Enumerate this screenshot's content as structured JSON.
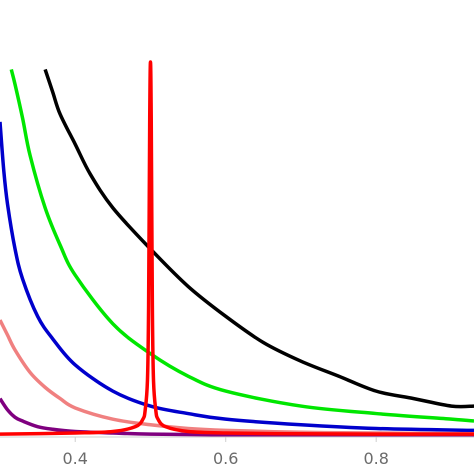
{
  "chart_data": {
    "type": "line",
    "title": "",
    "xlabel": "",
    "ylabel": "",
    "xlim": [
      0.3,
      0.93
    ],
    "ylim": [
      0,
      1
    ],
    "grid": false,
    "legend": "none",
    "x_ticks": [
      {
        "value": 0.4,
        "label": "0.4"
      },
      {
        "value": 0.6,
        "label": "0.6"
      },
      {
        "value": 0.8,
        "label": "0.8"
      }
    ],
    "series": [
      {
        "color": "#000000",
        "x": [
          0.36,
          0.37,
          0.38,
          0.4,
          0.42,
          0.45,
          0.5,
          0.55,
          0.6,
          0.65,
          0.7,
          0.75,
          0.8,
          0.85,
          0.9,
          0.93
        ],
        "y": [
          0.98,
          0.92,
          0.86,
          0.78,
          0.7,
          0.61,
          0.5,
          0.4,
          0.32,
          0.25,
          0.2,
          0.16,
          0.12,
          0.1,
          0.08,
          0.08
        ]
      },
      {
        "color": "#00e600",
        "x": [
          0.315,
          0.32,
          0.33,
          0.34,
          0.36,
          0.38,
          0.4,
          0.45,
          0.5,
          0.55,
          0.6,
          0.7,
          0.8,
          0.9,
          0.93
        ],
        "y": [
          0.98,
          0.94,
          0.85,
          0.75,
          0.61,
          0.51,
          0.43,
          0.3,
          0.22,
          0.16,
          0.12,
          0.08,
          0.06,
          0.045,
          0.04
        ]
      },
      {
        "color": "#0000cc",
        "x": [
          0.3,
          0.305,
          0.31,
          0.32,
          0.33,
          0.35,
          0.37,
          0.4,
          0.45,
          0.5,
          0.55,
          0.6,
          0.7,
          0.8,
          0.93
        ],
        "y": [
          0.84,
          0.71,
          0.62,
          0.5,
          0.42,
          0.32,
          0.26,
          0.19,
          0.12,
          0.08,
          0.06,
          0.045,
          0.03,
          0.02,
          0.015
        ]
      },
      {
        "color": "#f08080",
        "x": [
          0.3,
          0.31,
          0.32,
          0.34,
          0.36,
          0.38,
          0.4,
          0.45,
          0.5,
          0.55,
          0.6,
          0.7,
          0.8,
          0.93
        ],
        "y": [
          0.31,
          0.27,
          0.23,
          0.17,
          0.13,
          0.1,
          0.075,
          0.045,
          0.03,
          0.02,
          0.015,
          0.01,
          0.008,
          0.006
        ]
      },
      {
        "color": "#7f007f",
        "x": [
          0.3,
          0.31,
          0.32,
          0.33,
          0.35,
          0.37,
          0.4,
          0.45,
          0.5,
          0.6,
          0.7,
          0.8,
          0.93
        ],
        "y": [
          0.1,
          0.07,
          0.05,
          0.04,
          0.025,
          0.018,
          0.012,
          0.008,
          0.005,
          0.003,
          0.002,
          0.002,
          0.001
        ]
      },
      {
        "color": "#ff0000",
        "x": [
          0.3,
          0.4,
          0.45,
          0.48,
          0.49,
          0.493,
          0.496,
          0.4975,
          0.499,
          0.5,
          0.501,
          0.5025,
          0.504,
          0.507,
          0.51,
          0.52,
          0.55,
          0.6,
          0.7,
          0.8,
          0.93
        ],
        "y": [
          0.005,
          0.008,
          0.012,
          0.025,
          0.045,
          0.07,
          0.15,
          0.35,
          0.85,
          1.0,
          0.85,
          0.35,
          0.15,
          0.07,
          0.045,
          0.025,
          0.012,
          0.008,
          0.006,
          0.005,
          0.005
        ]
      }
    ]
  }
}
